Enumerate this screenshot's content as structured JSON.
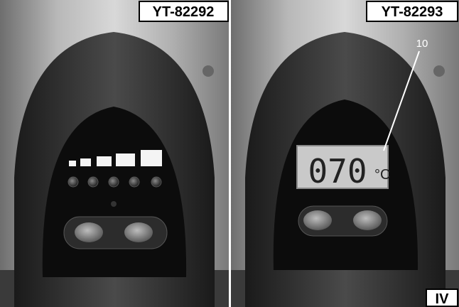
{
  "panels": [
    {
      "label": "YT-82292"
    },
    {
      "label": "YT-82293",
      "display": "070",
      "unit": "°C",
      "callout": "10"
    }
  ],
  "figure": "IV"
}
